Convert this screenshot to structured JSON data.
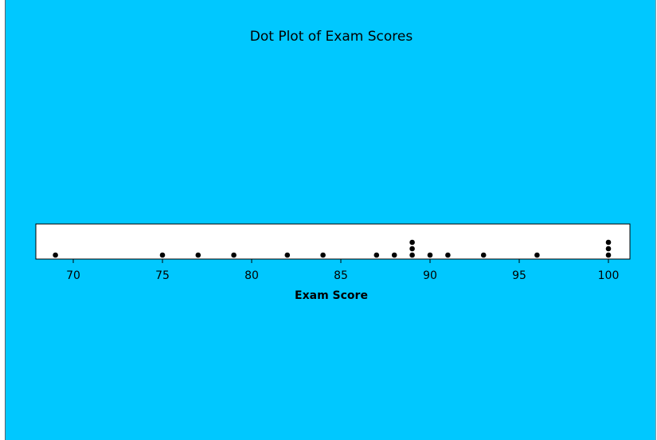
{
  "background_color": "#00c8ff",
  "chart_data": {
    "type": "scatter",
    "subtype": "dot plot",
    "title": "Dot Plot of Exam Scores",
    "xlabel": "Exam Score",
    "ylabel": "",
    "xlim": [
      68,
      101
    ],
    "x_ticks": [
      70,
      75,
      80,
      85,
      90,
      95,
      100
    ],
    "grid": false,
    "legend": "none",
    "values": [
      69,
      75,
      77,
      79,
      82,
      84,
      87,
      88,
      89,
      89,
      89,
      90,
      91,
      93,
      96,
      100,
      100,
      100
    ]
  }
}
